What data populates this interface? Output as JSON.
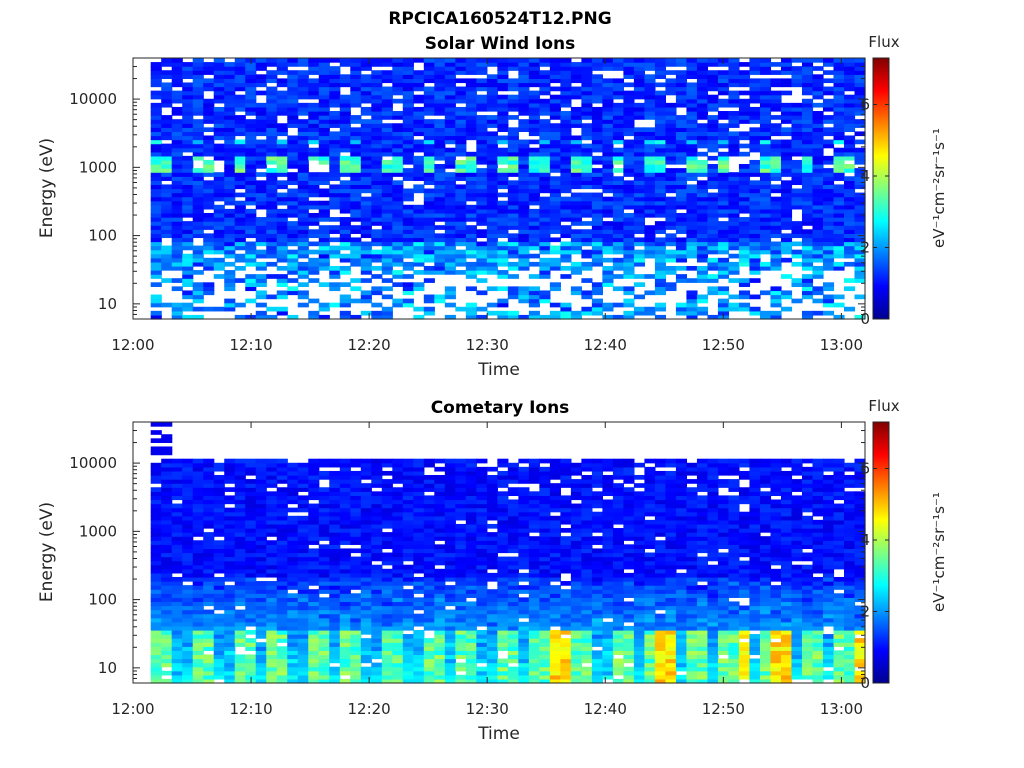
{
  "figure": {
    "title": "RPCICA160524T12.PNG"
  },
  "colormap": "jet",
  "chart_data": [
    {
      "type": "heatmap",
      "title": "Solar Wind Ions",
      "xlabel": "Time",
      "ylabel": "Energy (eV)",
      "x_ticks": [
        "12:00",
        "12:10",
        "12:20",
        "12:30",
        "12:40",
        "12:50",
        "13:00"
      ],
      "x_range_minutes": [
        0,
        62
      ],
      "data_start_minute": 1.5,
      "y_scale": "log",
      "y_ticks": [
        "10",
        "100",
        "1000",
        "10000"
      ],
      "y_range": [
        6,
        40000
      ],
      "colorbar": {
        "title": "Flux",
        "label": "eV⁻¹cm⁻²sr⁻¹s⁻¹",
        "ticks": [
          "0",
          "2",
          "4",
          "6"
        ],
        "range": [
          0,
          7.3
        ]
      },
      "features": [
        {
          "description": "Periodic solar wind proton peak near 1000 eV",
          "energy_eV": 1000,
          "period_minutes": 3.2,
          "flux_level": 3.2
        },
        {
          "description": "Background",
          "flux_level": 0.8
        }
      ]
    },
    {
      "type": "heatmap",
      "title": "Cometary Ions",
      "xlabel": "Time",
      "ylabel": "Energy (eV)",
      "x_ticks": [
        "12:00",
        "12:10",
        "12:20",
        "12:30",
        "12:40",
        "12:50",
        "13:00"
      ],
      "x_range_minutes": [
        0,
        62
      ],
      "data_start_minute": 1.5,
      "y_scale": "log",
      "y_ticks": [
        "10",
        "100",
        "1000",
        "10000"
      ],
      "y_range": [
        6,
        40000
      ],
      "upper_cutoff_eV": 11000,
      "colorbar": {
        "title": "Flux",
        "label": "eV⁻¹cm⁻²sr⁻¹s⁻¹",
        "ticks": [
          "0",
          "2",
          "4",
          "6"
        ],
        "range": [
          0,
          7.3
        ]
      },
      "features": [
        {
          "description": "Enhanced low-energy cometary ions",
          "energy_eV": 15,
          "period_minutes": 3.2,
          "flux_level": 3.5
        },
        {
          "description": "Peaks near 12:35, 12:45, 12:51, 12:54",
          "flux_level": 5.0
        },
        {
          "description": "Background",
          "flux_level": 0.8
        }
      ]
    }
  ]
}
